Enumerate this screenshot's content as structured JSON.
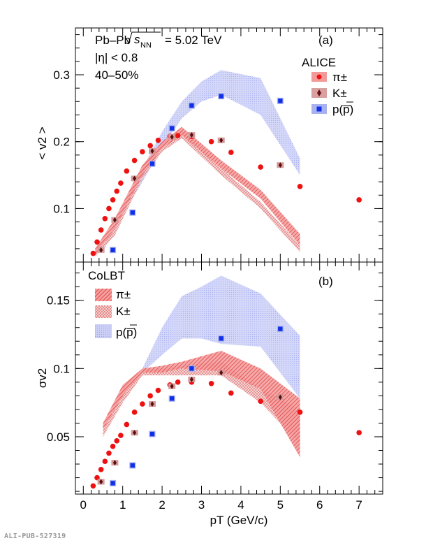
{
  "footer_id": "ALI-PUB-527319",
  "colors": {
    "pion": "#ee1111",
    "kaon": "#7a1010",
    "proton": "#1030e8",
    "pion_band": "#f07070",
    "kaon_band": "#e89090",
    "proton_band": "#b8bef0"
  },
  "chart_data": [
    {
      "type": "scatter",
      "panel_label": "(a)",
      "collision": "Pb–Pb",
      "sqrt_prefix": "s",
      "sqrt_sub": "NN",
      "energy": "= 5.02 TeV",
      "eta_cut": "|η| < 0.8",
      "centrality": "40–50%",
      "experiment": "ALICE",
      "ylabel": "< v2 >",
      "ylim": [
        0.02,
        0.37
      ],
      "xlim": [
        -0.2,
        7.6
      ],
      "yticks": [
        0.1,
        0.2,
        0.3
      ],
      "ytick_labels": [
        "0.1",
        "0.2",
        "0.3"
      ],
      "legend": [
        "π±",
        "K±",
        "p(p̅)"
      ],
      "series": [
        {
          "name": "π±",
          "x": [
            0.25,
            0.35,
            0.45,
            0.55,
            0.65,
            0.75,
            0.85,
            0.95,
            1.1,
            1.3,
            1.5,
            1.7,
            1.9,
            2.2,
            2.4,
            2.75,
            3.25,
            3.75,
            4.5,
            5.5,
            7.0
          ],
          "y": [
            0.033,
            0.05,
            0.068,
            0.085,
            0.1,
            0.113,
            0.126,
            0.138,
            0.156,
            0.172,
            0.185,
            0.194,
            0.202,
            0.208,
            0.209,
            0.208,
            0.2,
            0.184,
            0.162,
            0.133,
            0.113
          ]
        },
        {
          "name": "K±",
          "x": [
            0.45,
            0.8,
            1.3,
            1.75,
            2.25,
            2.75,
            3.5,
            5.0
          ],
          "y": [
            0.038,
            0.083,
            0.145,
            0.186,
            0.207,
            0.21,
            0.202,
            0.165
          ]
        },
        {
          "name": "p(p̅)",
          "x": [
            0.75,
            1.25,
            1.75,
            2.25,
            2.75,
            3.5,
            5.0
          ],
          "y": [
            0.038,
            0.094,
            0.167,
            0.22,
            0.254,
            0.268,
            0.261
          ]
        }
      ],
      "bands": [
        {
          "name": "π±",
          "x": [
            0.3,
            0.8,
            1.5,
            2.0,
            2.5,
            3.5,
            4.5,
            5.5
          ],
          "lo": [
            0.03,
            0.07,
            0.15,
            0.19,
            0.21,
            0.16,
            0.115,
            0.045
          ],
          "hi": [
            0.04,
            0.085,
            0.165,
            0.2,
            0.222,
            0.172,
            0.128,
            0.062
          ]
        },
        {
          "name": "K±",
          "x": [
            0.3,
            0.8,
            1.5,
            2.0,
            2.5,
            3.5,
            4.5,
            5.5
          ],
          "lo": [
            0.028,
            0.06,
            0.145,
            0.185,
            0.205,
            0.15,
            0.1,
            0.035
          ],
          "hi": [
            0.036,
            0.07,
            0.16,
            0.195,
            0.218,
            0.16,
            0.11,
            0.045
          ]
        },
        {
          "name": "p(p̅)",
          "x": [
            0.5,
            1.0,
            1.5,
            2.0,
            2.5,
            3.0,
            3.5,
            4.5,
            5.5
          ],
          "lo": [
            0.036,
            0.09,
            0.14,
            0.19,
            0.235,
            0.26,
            0.27,
            0.24,
            0.15
          ],
          "hi": [
            0.042,
            0.1,
            0.16,
            0.215,
            0.26,
            0.29,
            0.307,
            0.295,
            0.175
          ]
        }
      ]
    },
    {
      "type": "scatter",
      "panel_label": "(b)",
      "model": "CoLBT",
      "ylabel": "σv2",
      "xlabel": "pT (GeV/c)",
      "ylim": [
        0.008,
        0.178
      ],
      "xlim": [
        -0.2,
        7.6
      ],
      "xticks": [
        0,
        1,
        2,
        3,
        4,
        5,
        6,
        7
      ],
      "xtick_labels": [
        "0",
        "1",
        "2",
        "3",
        "4",
        "5",
        "6",
        "7"
      ],
      "yticks": [
        0.05,
        0.1,
        0.15
      ],
      "ytick_labels": [
        "0.05",
        "0.1",
        "0.15"
      ],
      "legend": [
        "π±",
        "K±",
        "p(p̅)"
      ],
      "series": [
        {
          "name": "π±",
          "x": [
            0.25,
            0.35,
            0.45,
            0.55,
            0.65,
            0.75,
            0.85,
            0.95,
            1.1,
            1.3,
            1.5,
            1.7,
            1.9,
            2.2,
            2.4,
            2.75,
            3.25,
            3.75,
            4.5,
            5.5,
            7.0
          ],
          "y": [
            0.014,
            0.02,
            0.026,
            0.032,
            0.038,
            0.043,
            0.047,
            0.051,
            0.059,
            0.068,
            0.074,
            0.08,
            0.084,
            0.088,
            0.09,
            0.09,
            0.089,
            0.082,
            0.076,
            0.068,
            0.053
          ]
        },
        {
          "name": "K±",
          "x": [
            0.45,
            0.8,
            1.3,
            1.75,
            2.25,
            2.75,
            3.5,
            5.0
          ],
          "y": [
            0.017,
            0.031,
            0.053,
            0.074,
            0.087,
            0.092,
            0.097,
            0.079
          ]
        },
        {
          "name": "p(p̅)",
          "x": [
            0.75,
            1.25,
            1.75,
            2.25,
            2.75,
            3.5,
            5.0
          ],
          "y": [
            0.016,
            0.029,
            0.052,
            0.078,
            0.1,
            0.122,
            0.129
          ]
        }
      ],
      "bands": [
        {
          "name": "π±",
          "x": [
            0.5,
            1.0,
            1.5,
            2.0,
            2.5,
            3.5,
            4.5,
            5.5
          ],
          "lo": [
            0.055,
            0.08,
            0.097,
            0.097,
            0.1,
            0.098,
            0.085,
            0.035
          ],
          "hi": [
            0.06,
            0.088,
            0.1,
            0.102,
            0.105,
            0.113,
            0.1,
            0.078
          ]
        },
        {
          "name": "K±",
          "x": [
            0.5,
            1.0,
            1.5,
            2.0,
            2.5,
            3.5,
            4.5,
            5.5
          ],
          "lo": [
            0.05,
            0.075,
            0.095,
            0.095,
            0.095,
            0.095,
            0.075,
            0.045
          ],
          "hi": [
            0.055,
            0.085,
            0.1,
            0.1,
            0.102,
            0.105,
            0.085,
            0.07
          ]
        },
        {
          "name": "p(p̅)",
          "x": [
            1.5,
            2.0,
            2.5,
            3.0,
            3.5,
            4.5,
            5.5
          ],
          "lo": [
            0.097,
            0.11,
            0.122,
            0.122,
            0.118,
            0.116,
            0.078
          ],
          "hi": [
            0.1,
            0.13,
            0.153,
            0.16,
            0.168,
            0.155,
            0.124
          ]
        }
      ]
    }
  ]
}
